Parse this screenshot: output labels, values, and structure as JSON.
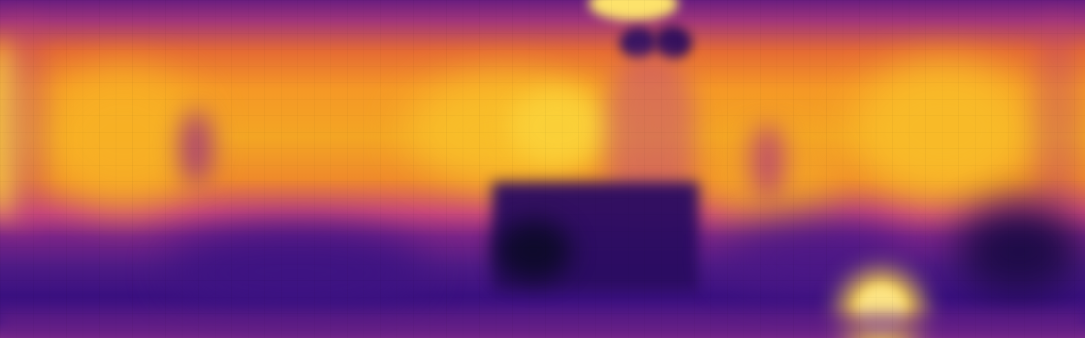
{
  "image": {
    "kind": "depth-map",
    "palette": [
      "#0d0a29",
      "#3a1080",
      "#7a2487",
      "#c8477a",
      "#ef8a2b",
      "#f3a524",
      "#fbe36a"
    ]
  }
}
